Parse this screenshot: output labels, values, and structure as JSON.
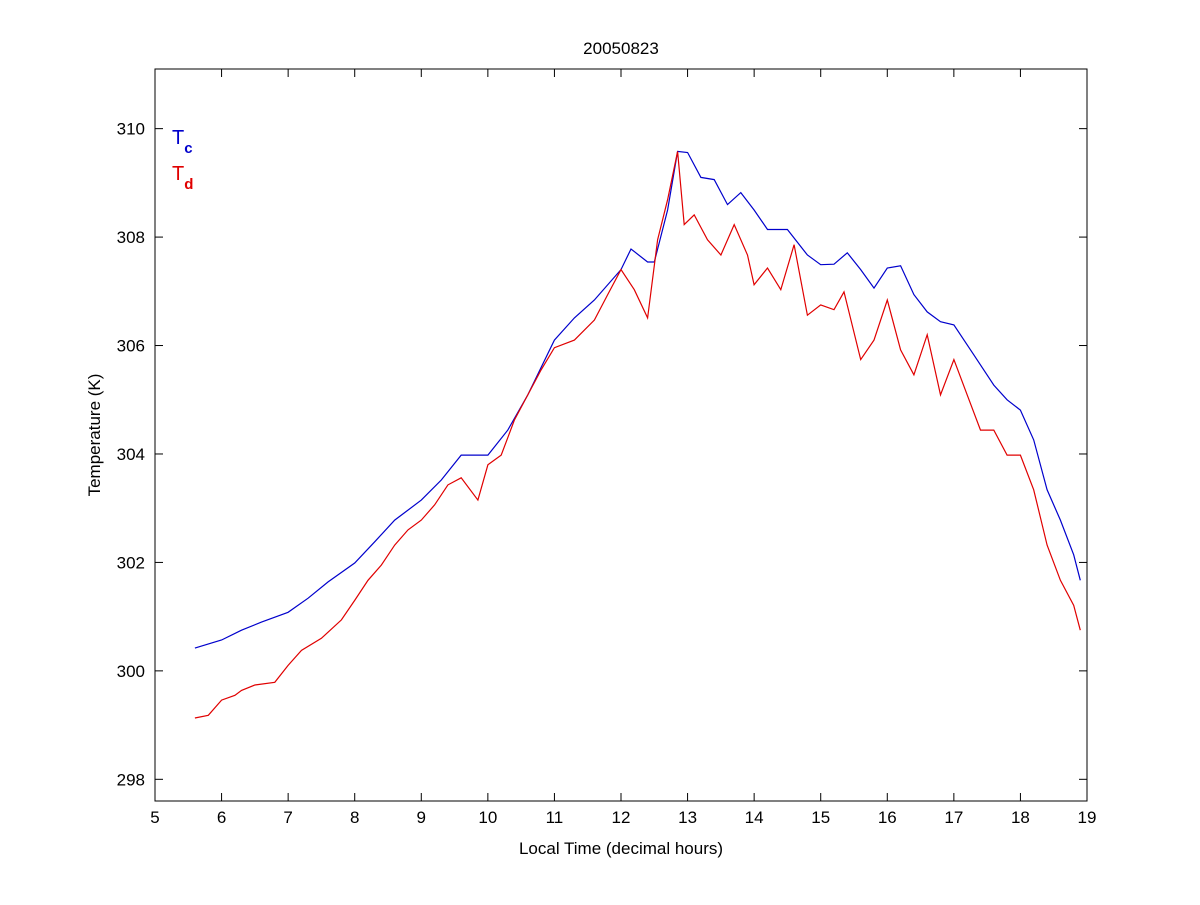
{
  "chart_data": {
    "type": "line",
    "title": "20050823",
    "xlabel": "Local Time (decimal hours)",
    "ylabel": "Temperature (K)",
    "xlim": [
      5,
      19
    ],
    "ylim": [
      297.6,
      311.1
    ],
    "xticks": [
      5,
      6,
      7,
      8,
      9,
      10,
      11,
      12,
      13,
      14,
      15,
      16,
      17,
      18,
      19
    ],
    "yticks": [
      298,
      300,
      302,
      304,
      306,
      308,
      310
    ],
    "grid": false,
    "legend_placement": "top-left",
    "series": [
      {
        "name": "Tc",
        "label_main": "T",
        "label_sub": "c",
        "color": "#0000cc",
        "x": [
          5.6,
          6.0,
          6.3,
          6.6,
          7.0,
          7.3,
          7.6,
          8.0,
          8.3,
          8.6,
          9.0,
          9.3,
          9.6,
          10.0,
          10.3,
          10.6,
          11.0,
          11.3,
          11.6,
          12.0,
          12.15,
          12.4,
          12.5,
          12.7,
          12.85,
          13.0,
          13.2,
          13.4,
          13.6,
          13.8,
          14.0,
          14.2,
          14.5,
          14.8,
          15.0,
          15.2,
          15.4,
          15.6,
          15.8,
          16.0,
          16.2,
          16.4,
          16.6,
          16.8,
          17.0,
          17.3,
          17.6,
          17.8,
          18.0,
          18.2,
          18.4,
          18.6,
          18.8,
          18.9
        ],
        "y": [
          300.42,
          300.57,
          300.75,
          300.9,
          301.08,
          301.34,
          301.64,
          301.99,
          302.38,
          302.78,
          303.15,
          303.52,
          303.98,
          303.98,
          304.44,
          305.09,
          306.1,
          306.51,
          306.84,
          307.4,
          307.78,
          307.54,
          307.54,
          308.5,
          309.58,
          309.56,
          309.1,
          309.06,
          308.6,
          308.82,
          308.5,
          308.14,
          308.14,
          307.67,
          307.49,
          307.5,
          307.71,
          307.4,
          307.06,
          307.43,
          307.47,
          306.94,
          306.62,
          306.44,
          306.38,
          305.83,
          305.27,
          305.0,
          304.81,
          304.26,
          303.34,
          302.78,
          302.14,
          301.67
        ]
      },
      {
        "name": "Td",
        "label_main": "T",
        "label_sub": "d",
        "color": "#e00000",
        "x": [
          5.6,
          5.8,
          6.0,
          6.2,
          6.3,
          6.5,
          6.8,
          7.0,
          7.2,
          7.5,
          7.8,
          8.0,
          8.2,
          8.4,
          8.6,
          8.8,
          9.0,
          9.2,
          9.4,
          9.6,
          9.85,
          10.0,
          10.2,
          10.4,
          10.6,
          10.8,
          11.0,
          11.3,
          11.6,
          11.8,
          12.0,
          12.2,
          12.4,
          12.55,
          12.7,
          12.85,
          12.95,
          13.1,
          13.3,
          13.5,
          13.7,
          13.9,
          14.0,
          14.2,
          14.4,
          14.6,
          14.8,
          15.0,
          15.2,
          15.35,
          15.6,
          15.8,
          16.0,
          16.2,
          16.4,
          16.6,
          16.8,
          17.0,
          17.2,
          17.4,
          17.6,
          17.8,
          18.0,
          18.2,
          18.4,
          18.6,
          18.8,
          18.9
        ],
        "y": [
          299.13,
          299.18,
          299.46,
          299.55,
          299.64,
          299.74,
          299.79,
          300.1,
          300.38,
          300.6,
          300.94,
          301.3,
          301.67,
          301.95,
          302.32,
          302.6,
          302.78,
          303.06,
          303.43,
          303.56,
          303.15,
          303.8,
          303.98,
          304.63,
          305.09,
          305.55,
          305.96,
          306.1,
          306.47,
          306.94,
          307.4,
          307.03,
          306.51,
          307.95,
          308.69,
          309.58,
          308.23,
          308.41,
          307.95,
          307.67,
          308.23,
          307.67,
          307.12,
          307.43,
          307.03,
          307.86,
          306.56,
          306.75,
          306.66,
          306.99,
          305.74,
          306.1,
          306.84,
          305.92,
          305.46,
          306.2,
          305.09,
          305.74,
          305.09,
          304.44,
          304.44,
          303.98,
          303.98,
          303.34,
          302.32,
          301.67,
          301.21,
          300.75
        ]
      }
    ]
  }
}
